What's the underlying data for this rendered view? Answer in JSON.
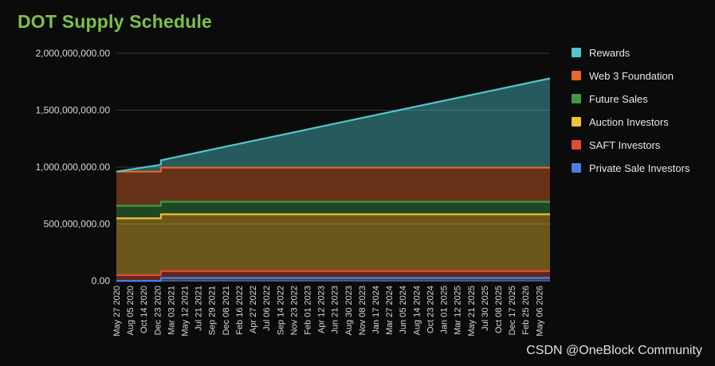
{
  "chart_data": {
    "type": "area",
    "stacked": true,
    "title": "DOT Supply Schedule",
    "xlabel": "",
    "ylabel": "",
    "ylim": [
      0,
      2000000000
    ],
    "yticks": [
      {
        "value": 0,
        "label": "0.00"
      },
      {
        "value": 500000000,
        "label": "500,000,000.00"
      },
      {
        "value": 1000000000,
        "label": "1,000,000,000.00"
      },
      {
        "value": 1500000000,
        "label": "1,500,000,000.00"
      },
      {
        "value": 2000000000,
        "label": "2,000,000,000.00"
      }
    ],
    "grid": true,
    "legend_position": "right",
    "x": [
      "May 27 2020",
      "Aug 05 2020",
      "Oct 14 2020",
      "Dec 23 2020",
      "Mar 03 2021",
      "May 12 2021",
      "Jul 21 2021",
      "Sep 29 2021",
      "Dec 08 2021",
      "Feb 16 2022",
      "Apr 27 2022",
      "Jul 06 2022",
      "Sep 14 2022",
      "Nov 23 2022",
      "Feb 01 2023",
      "Apr 12 2023",
      "Jun 21 2023",
      "Aug 30 2023",
      "Nov 08 2023",
      "Jan 17 2024",
      "Mar 27 2024",
      "Jun 05 2024",
      "Aug 14 2024",
      "Oct 23 2024",
      "Jan 01 2025",
      "Mar 12 2025",
      "May 21 2025",
      "Jul 30 2025",
      "Oct 08 2025",
      "Dec 17 2025",
      "Feb 25 2026",
      "May 06 2026"
    ],
    "x_extent": [
      "May 27 2020",
      "Jul 01 2026"
    ],
    "series": [
      {
        "name": "Private Sale Investors",
        "color": "#4a7fe8",
        "points": [
          [
            "May 27 2020",
            0
          ],
          [
            "Jan 10 2021",
            0
          ],
          [
            "Jan 11 2021",
            25000000
          ],
          [
            "Jul 01 2026",
            25000000
          ]
        ]
      },
      {
        "name": "SAFT Investors",
        "color": "#e04a3a",
        "points": [
          [
            "May 27 2020",
            50000000
          ],
          [
            "Jan 10 2021",
            50000000
          ],
          [
            "Jan 11 2021",
            60000000
          ],
          [
            "Jul 01 2026",
            60000000
          ]
        ]
      },
      {
        "name": "Auction Investors",
        "color": "#f2c232",
        "points": [
          [
            "May 27 2020",
            500000000
          ],
          [
            "Jan 10 2021",
            500000000
          ],
          [
            "Jan 11 2021",
            500000000
          ],
          [
            "Jul 01 2026",
            500000000
          ]
        ]
      },
      {
        "name": "Future Sales",
        "color": "#3f9a48",
        "points": [
          [
            "May 27 2020",
            110000000
          ],
          [
            "Jan 10 2021",
            110000000
          ],
          [
            "Jan 11 2021",
            110000000
          ],
          [
            "Jul 01 2026",
            110000000
          ]
        ]
      },
      {
        "name": "Web 3 Foundation",
        "color": "#e8692c",
        "points": [
          [
            "May 27 2020",
            300000000
          ],
          [
            "Jan 10 2021",
            300000000
          ],
          [
            "Jan 11 2021",
            300000000
          ],
          [
            "Jul 01 2026",
            300000000
          ]
        ]
      },
      {
        "name": "Rewards",
        "color": "#4fc7cd",
        "points": [
          [
            "May 27 2020",
            0
          ],
          [
            "Jan 10 2021",
            60000000
          ],
          [
            "Jan 11 2021",
            65000000
          ],
          [
            "Jul 01 2026",
            785000000
          ]
        ]
      }
    ],
    "legend_order": [
      "Rewards",
      "Web 3 Foundation",
      "Future Sales",
      "Auction Investors",
      "SAFT Investors",
      "Private Sale Investors"
    ]
  },
  "watermark": "CSDN @OneBlock Community"
}
